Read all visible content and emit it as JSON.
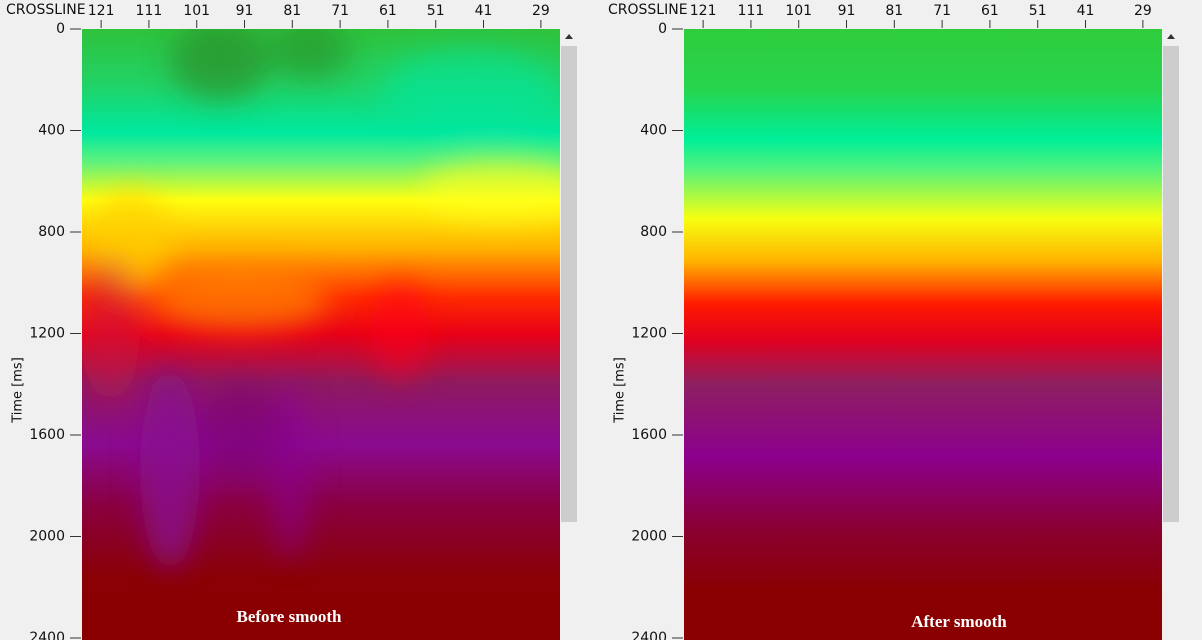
{
  "chart_data": [
    {
      "type": "heatmap",
      "x_label": "CROSSLINE",
      "y_label": "Time [ms]",
      "annotation": "Before smooth",
      "xlim": [
        125,
        25
      ],
      "xticks": [
        121,
        111,
        101,
        91,
        81,
        71,
        61,
        51,
        41,
        29
      ],
      "ylim": [
        0,
        2400
      ],
      "yticks": [
        0,
        400,
        800,
        1200,
        1600,
        2000,
        2400
      ]
    },
    {
      "type": "heatmap",
      "x_label": "CROSSLINE",
      "y_label": "Time [ms]",
      "annotation": "After smooth",
      "xlim": [
        125,
        25
      ],
      "xticks": [
        121,
        111,
        101,
        91,
        81,
        71,
        61,
        51,
        41,
        29
      ],
      "ylim": [
        0,
        2400
      ],
      "yticks": [
        0,
        400,
        800,
        1200,
        1600,
        2000,
        2400
      ]
    }
  ]
}
